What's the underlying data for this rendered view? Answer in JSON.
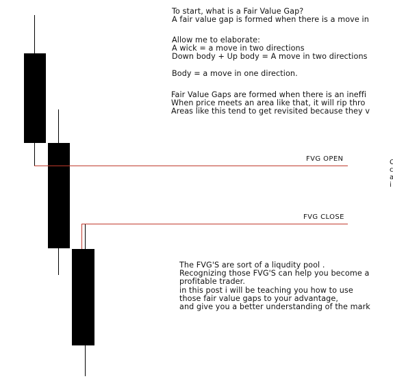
{
  "intro": {
    "line1": "To start, what is a Fair Value Gap?",
    "line2": "A fair value gap is formed when there is a move in"
  },
  "elaborate": {
    "line1": "Allow me to elaborate:",
    "line2": "A wick = a move in two directions",
    "line3": "Down body + Up body = A move in two directions",
    "line4": "Body = a move in one direction."
  },
  "formation": {
    "line1": "Fair Value Gaps are formed when there is an ineffi",
    "line2": "When price meets an area like that, it will rip thro",
    "line3": "Areas like this tend to get revisited because they v"
  },
  "fvg_open": {
    "label": "FVG OPEN"
  },
  "fvg_close": {
    "label": "FVG CLOSE"
  },
  "side_note": {
    "l1": "C",
    "l2": "c",
    "l3": "a",
    "l4": "i"
  },
  "summary": {
    "line1": "The FVG'S are sort of a liqudity pool .",
    "line2": "Recognizing those FVG'S can help you become a",
    "line3": "profitable trader.",
    "line4": "in this post i will be teaching you how to use",
    "line5": "those fair value gaps to your advantage,",
    "line6": "and give you a better understanding of the mark"
  },
  "colors": {
    "candle": "#000000",
    "level_line": "#c0392b",
    "text": "#111111",
    "background": "#ffffff"
  }
}
